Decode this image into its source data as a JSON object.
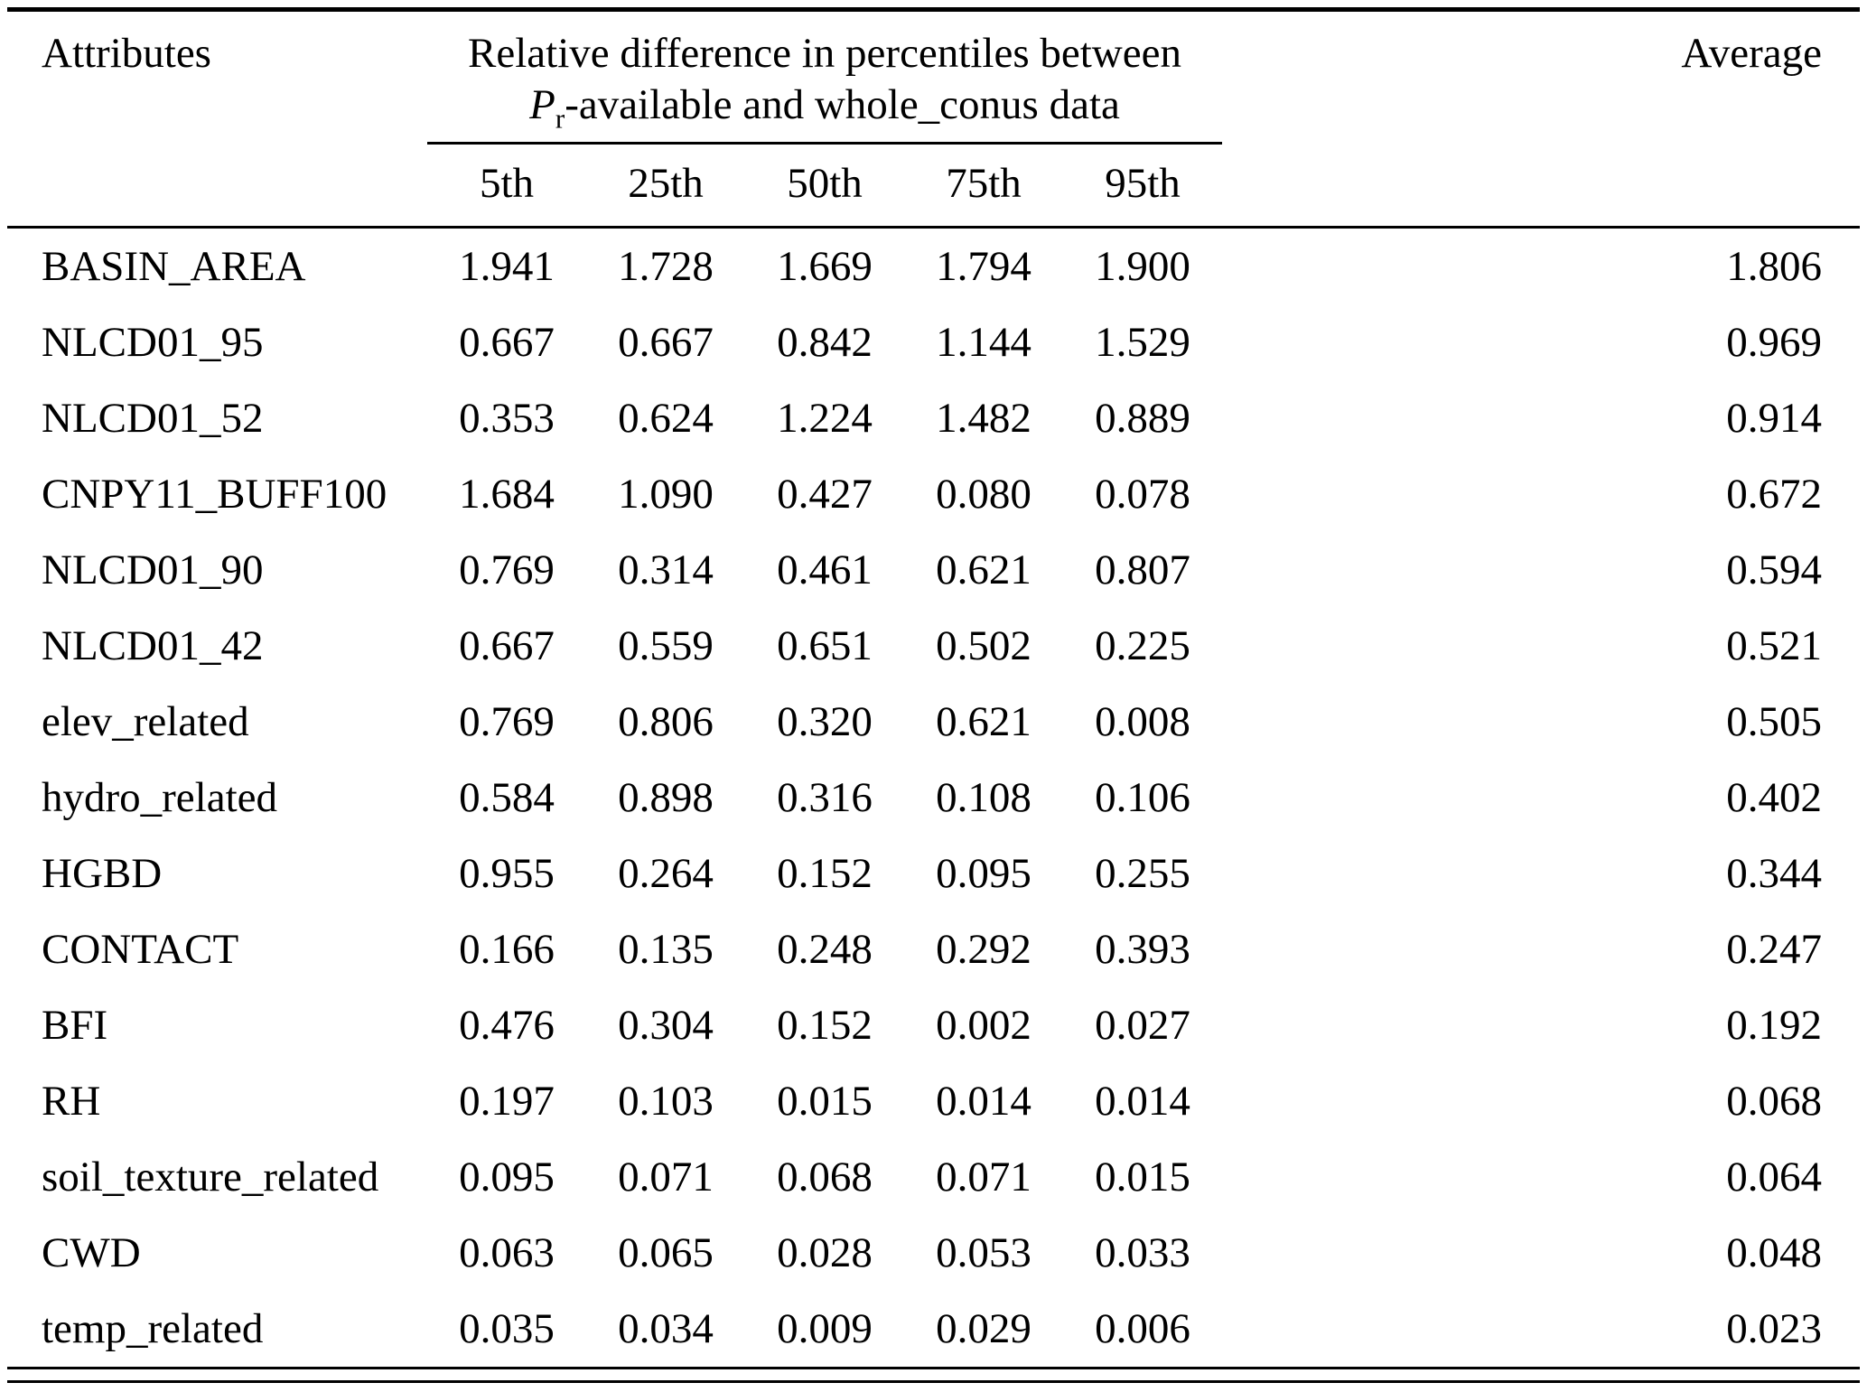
{
  "table": {
    "headers": {
      "attributes": "Attributes",
      "span_line1": "Relative difference in percentiles between",
      "span_p": "P",
      "span_p_sub": "r",
      "span_line2_rest": "-available and whole_conus data",
      "average": "Average",
      "percentiles": [
        "5th",
        "25th",
        "50th",
        "75th",
        "95th"
      ]
    },
    "rows": [
      {
        "attribute": "BASIN_AREA",
        "values": [
          "1.941",
          "1.728",
          "1.669",
          "1.794",
          "1.900"
        ],
        "average": "1.806"
      },
      {
        "attribute": "NLCD01_95",
        "values": [
          "0.667",
          "0.667",
          "0.842",
          "1.144",
          "1.529"
        ],
        "average": "0.969"
      },
      {
        "attribute": "NLCD01_52",
        "values": [
          "0.353",
          "0.624",
          "1.224",
          "1.482",
          "0.889"
        ],
        "average": "0.914"
      },
      {
        "attribute": "CNPY11_BUFF100",
        "values": [
          "1.684",
          "1.090",
          "0.427",
          "0.080",
          "0.078"
        ],
        "average": "0.672"
      },
      {
        "attribute": "NLCD01_90",
        "values": [
          "0.769",
          "0.314",
          "0.461",
          "0.621",
          "0.807"
        ],
        "average": "0.594"
      },
      {
        "attribute": "NLCD01_42",
        "values": [
          "0.667",
          "0.559",
          "0.651",
          "0.502",
          "0.225"
        ],
        "average": "0.521"
      },
      {
        "attribute": "elev_related",
        "values": [
          "0.769",
          "0.806",
          "0.320",
          "0.621",
          "0.008"
        ],
        "average": "0.505"
      },
      {
        "attribute": "hydro_related",
        "values": [
          "0.584",
          "0.898",
          "0.316",
          "0.108",
          "0.106"
        ],
        "average": "0.402"
      },
      {
        "attribute": "HGBD",
        "values": [
          "0.955",
          "0.264",
          "0.152",
          "0.095",
          "0.255"
        ],
        "average": "0.344"
      },
      {
        "attribute": "CONTACT",
        "values": [
          "0.166",
          "0.135",
          "0.248",
          "0.292",
          "0.393"
        ],
        "average": "0.247"
      },
      {
        "attribute": "BFI",
        "values": [
          "0.476",
          "0.304",
          "0.152",
          "0.002",
          "0.027"
        ],
        "average": "0.192"
      },
      {
        "attribute": "RH",
        "values": [
          "0.197",
          "0.103",
          "0.015",
          "0.014",
          "0.014"
        ],
        "average": "0.068"
      },
      {
        "attribute": "soil_texture_related",
        "values": [
          "0.095",
          "0.071",
          "0.068",
          "0.071",
          "0.015"
        ],
        "average": "0.064"
      },
      {
        "attribute": "CWD",
        "values": [
          "0.063",
          "0.065",
          "0.028",
          "0.053",
          "0.033"
        ],
        "average": "0.048"
      },
      {
        "attribute": "temp_related",
        "values": [
          "0.035",
          "0.034",
          "0.009",
          "0.029",
          "0.006"
        ],
        "average": "0.023"
      }
    ]
  }
}
